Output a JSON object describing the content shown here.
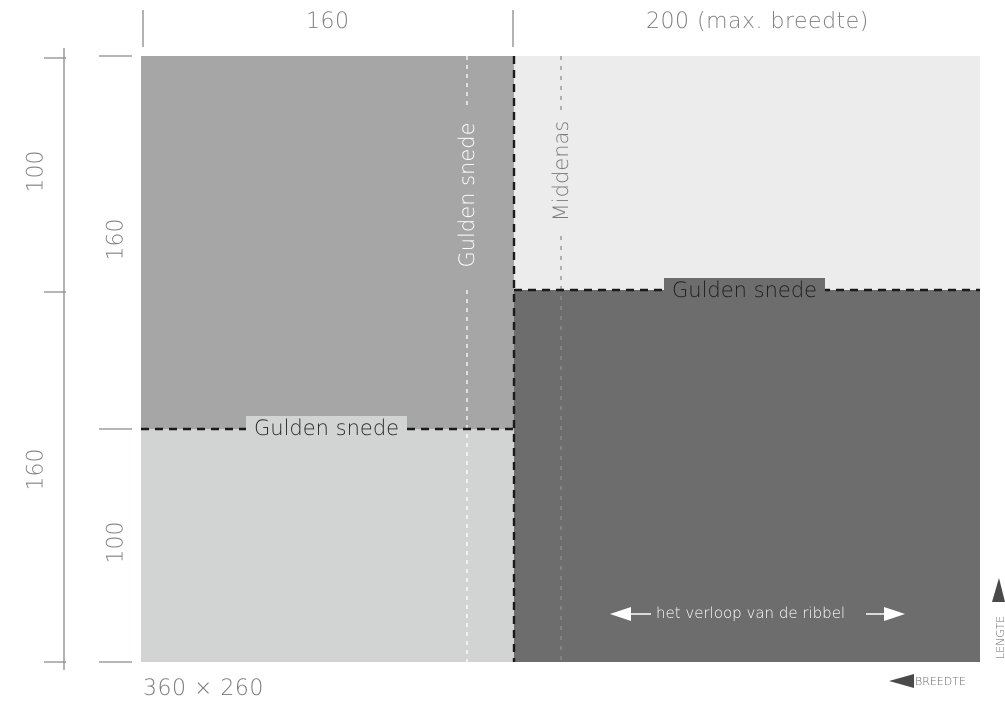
{
  "dims": {
    "top_left": "160",
    "top_right": "200 (max. breedte)",
    "outer_upper": "100",
    "outer_lower": "160",
    "inner_upper": "160",
    "inner_lower": "100",
    "size": "360 × 260"
  },
  "labels": {
    "golden_cut_h_left": "Gulden snede",
    "golden_cut_h_right": "Gulden snede",
    "golden_cut_v": "Gulden snede",
    "center_axis": "Middenas",
    "rib_direction": "het verloop van de ribbel"
  },
  "axes": {
    "length": "LENGTE",
    "width": "BREEDTE"
  },
  "colors": {
    "panel_top_left": "#a6a6a6",
    "panel_top_right": "#ececec",
    "panel_bottom_left": "#d2d3d3",
    "panel_bottom_right": "#6d6d6d",
    "dim_line": "#8a8a8a"
  }
}
